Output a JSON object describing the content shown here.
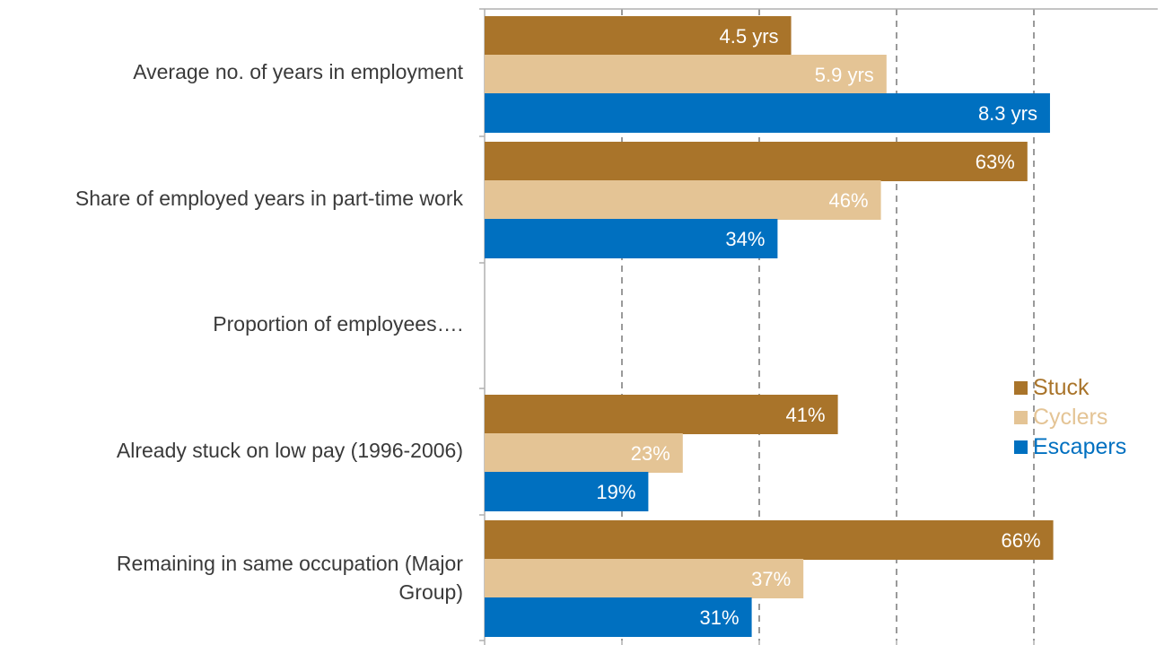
{
  "chart_data": {
    "type": "bar",
    "orientation": "horizontal",
    "categories": [
      "Average no. of years in employment",
      "Share of employed years in part-time work",
      "Proportion of employees….",
      "Already stuck on low pay (1996-2006)",
      "Remaining in same occupation (Major Group)"
    ],
    "series": [
      {
        "name": "Stuck",
        "color": "#A9742A",
        "values": [
          4.5,
          63,
          null,
          41,
          66
        ],
        "labels": [
          "4.5 yrs",
          "63%",
          "",
          "41%",
          "66%"
        ]
      },
      {
        "name": "Cyclers",
        "color": "#E4C495",
        "values": [
          5.9,
          46,
          null,
          23,
          37
        ],
        "labels": [
          "5.9 yrs",
          "46%",
          "",
          "23%",
          "37%"
        ]
      },
      {
        "name": "Escapers",
        "color": "#0070C0",
        "values": [
          8.3,
          34,
          null,
          19,
          31
        ],
        "labels": [
          "8.3 yrs",
          "34%",
          "",
          "19%",
          "31%"
        ]
      }
    ],
    "legend": {
      "position": "right"
    },
    "grid": true,
    "grid_style": "dashed vertical"
  }
}
